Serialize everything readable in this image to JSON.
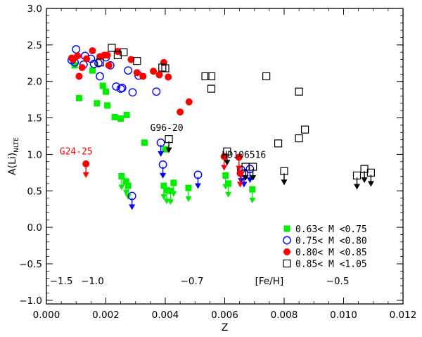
{
  "chart_data": {
    "type": "scatter",
    "title": "",
    "xlabel": "Z",
    "ylabel": "A(Li)",
    "ylabel_sub": "NLTE",
    "xlim": [
      0.0,
      0.012
    ],
    "ylim": [
      -1.05,
      3.0
    ],
    "x_ticks": [
      0.0,
      0.002,
      0.004,
      0.006,
      0.008,
      0.01,
      0.012
    ],
    "x_tick_labels": [
      "0.000",
      "0.002",
      "0.004",
      "0.006",
      "0.008",
      "0.010",
      "0.012"
    ],
    "y_ticks": [
      -1.0,
      -0.5,
      0.0,
      0.5,
      1.0,
      1.5,
      2.0,
      2.5,
      3.0
    ],
    "y_tick_labels": [
      "−1.0",
      "−0.5",
      "0.0",
      "0.5",
      "1.0",
      "1.5",
      "2.0",
      "2.5",
      "3.0"
    ],
    "feh_scale": {
      "label": "[Fe/H]",
      "ticks": [
        {
          "z": 0.0005,
          "label": "−1.5"
        },
        {
          "z": 0.00155,
          "label": "−1.0"
        },
        {
          "z": 0.0049,
          "label": "−0.7"
        },
        {
          "z": 0.0098,
          "label": "−0.5"
        }
      ],
      "label_z": 0.0075,
      "y": -0.78
    },
    "annotations": [
      {
        "text": "G24-25",
        "x": 0.001,
        "y": 1.0,
        "color": "#ff0000"
      },
      {
        "text": "G96-20",
        "x": 0.00405,
        "y": 1.32,
        "color": "#000000"
      },
      {
        "text": "HD106516",
        "x": 0.00665,
        "y": 0.95,
        "color": "#000000"
      }
    ],
    "legend": {
      "placement": "bottom-right",
      "entries": [
        {
          "label": "0.63< M <0.75",
          "series": 0
        },
        {
          "label": "0.75< M <0.80",
          "series": 1
        },
        {
          "label": "0.80< M <0.85",
          "series": 2
        },
        {
          "label": "0.85< M <1.05",
          "series": 3
        }
      ]
    },
    "series": [
      {
        "marker": "filled-square",
        "color": "#00ee00",
        "points": [
          [
            0.00095,
            2.22
          ],
          [
            0.0011,
            1.77
          ],
          [
            0.00155,
            2.15
          ],
          [
            0.0017,
            1.7
          ],
          [
            0.0019,
            1.94
          ],
          [
            0.002,
            1.86
          ],
          [
            0.00205,
            1.67
          ],
          [
            0.0023,
            1.51
          ],
          [
            0.0025,
            1.49
          ],
          [
            0.0027,
            1.54
          ],
          [
            0.0033,
            1.16
          ],
          [
            0.004,
            1.07
          ]
        ],
        "upper_limits": [
          [
            0.00253,
            0.7
          ],
          [
            0.00268,
            0.63
          ],
          [
            0.00275,
            0.57
          ],
          [
            0.00395,
            0.57
          ],
          [
            0.00405,
            0.51
          ],
          [
            0.00418,
            0.5
          ],
          [
            0.00428,
            0.61
          ],
          [
            0.00478,
            0.54
          ],
          [
            0.00603,
            0.71
          ],
          [
            0.00612,
            0.6
          ],
          [
            0.00693,
            0.52
          ]
        ]
      },
      {
        "marker": "open-circle",
        "color": "#0000ff",
        "points": [
          [
            0.00085,
            2.29
          ],
          [
            0.00095,
            2.26
          ],
          [
            0.001,
            2.44
          ],
          [
            0.00125,
            2.23
          ],
          [
            0.0013,
            2.35
          ],
          [
            0.0015,
            2.31
          ],
          [
            0.0016,
            2.24
          ],
          [
            0.00175,
            2.25
          ],
          [
            0.0018,
            2.07
          ],
          [
            0.002,
            2.33
          ],
          [
            0.00215,
            2.22
          ],
          [
            0.00235,
            1.93
          ],
          [
            0.0025,
            1.9
          ],
          [
            0.00255,
            1.91
          ],
          [
            0.00275,
            2.15
          ],
          [
            0.0029,
            1.85
          ],
          [
            0.0031,
            2.08
          ],
          [
            0.0037,
            1.86
          ]
        ],
        "upper_limits": [
          [
            0.00288,
            0.43
          ],
          [
            0.00385,
            1.16
          ],
          [
            0.00392,
            0.86
          ],
          [
            0.0051,
            0.72
          ],
          [
            0.00655,
            0.79
          ],
          [
            0.00665,
            0.74
          ],
          [
            0.00685,
            0.8
          ]
        ]
      },
      {
        "marker": "filled-circle",
        "color": "#ff0000",
        "points": [
          [
            0.00085,
            2.32
          ],
          [
            0.0009,
            2.3
          ],
          [
            0.00105,
            2.35
          ],
          [
            0.0011,
            2.07
          ],
          [
            0.0012,
            2.19
          ],
          [
            0.00135,
            2.31
          ],
          [
            0.00155,
            2.42
          ],
          [
            0.0018,
            2.34
          ],
          [
            0.00195,
            2.36
          ],
          [
            0.00205,
            2.36
          ],
          [
            0.0021,
            2.22
          ],
          [
            0.0024,
            2.41
          ],
          [
            0.00285,
            2.3
          ],
          [
            0.00305,
            2.12
          ],
          [
            0.00325,
            2.07
          ],
          [
            0.0036,
            2.14
          ],
          [
            0.0038,
            2.09
          ],
          [
            0.00395,
            2.26
          ],
          [
            0.0041,
            2.06
          ],
          [
            0.0045,
            1.58
          ],
          [
            0.0048,
            1.72
          ]
        ],
        "upper_limits": [
          [
            0.00133,
            0.87
          ],
          [
            0.00598,
            0.97
          ],
          [
            0.00648,
            0.96
          ],
          [
            0.00652,
            0.74
          ]
        ]
      },
      {
        "marker": "open-square",
        "color": "#000000",
        "points": [
          [
            0.0018,
            2.26
          ],
          [
            0.0022,
            2.46
          ],
          [
            0.0024,
            2.36
          ],
          [
            0.0026,
            2.4
          ],
          [
            0.00305,
            2.28
          ],
          [
            0.0039,
            2.19
          ],
          [
            0.004,
            2.18
          ],
          [
            0.00535,
            2.07
          ],
          [
            0.00555,
            1.9
          ],
          [
            0.00555,
            2.07
          ],
          [
            0.0074,
            2.07
          ],
          [
            0.0078,
            1.15
          ],
          [
            0.0085,
            1.86
          ],
          [
            0.0085,
            1.22
          ],
          [
            0.0087,
            1.34
          ]
        ],
        "upper_limits": [
          [
            0.00412,
            1.21
          ],
          [
            0.00608,
            1.04
          ],
          [
            0.0067,
            0.83
          ],
          [
            0.00695,
            0.83
          ],
          [
            0.008,
            0.77
          ],
          [
            0.01045,
            0.71
          ],
          [
            0.0107,
            0.8
          ],
          [
            0.01092,
            0.75
          ]
        ]
      }
    ]
  }
}
